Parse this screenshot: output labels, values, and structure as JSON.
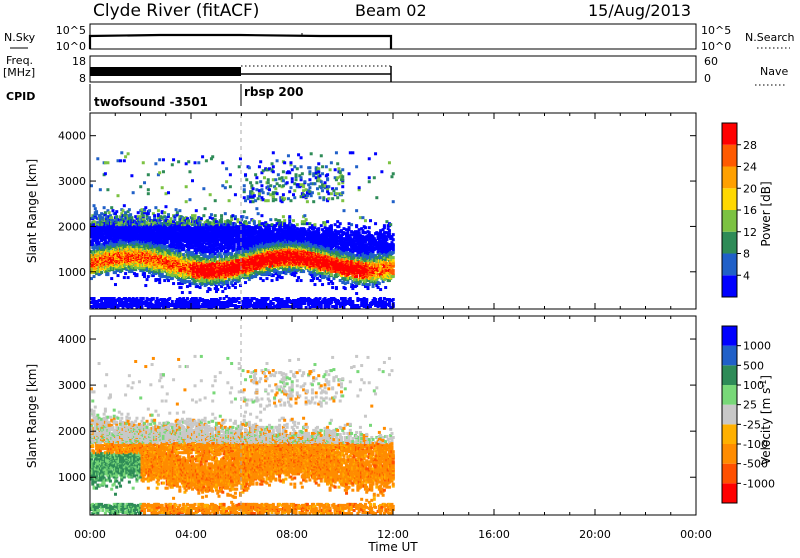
{
  "header": {
    "station": "Clyde River (fitACF)",
    "beam": "Beam 02",
    "date": "15/Aug/2013"
  },
  "strips": {
    "nsky": {
      "left_label": "N.Sky",
      "left_ticks": [
        "10^5",
        "10^0"
      ],
      "right_ticks": [
        "10^5",
        "10^0"
      ],
      "right_label": "N.Search"
    },
    "freq": {
      "left_label_1": "Freq.",
      "left_label_2": "[MHz]",
      "left_ticks": [
        "18",
        "8"
      ],
      "right_ticks": [
        "60",
        "0"
      ],
      "right_label": "Nave"
    },
    "cpid": {
      "label": "CPID",
      "programs": [
        "twofsound -3501",
        "rbsp 200"
      ]
    }
  },
  "colors": {
    "power_scale": [
      "#0000ff",
      "#2060c8",
      "#2e8b57",
      "#7cc242",
      "#ffd800",
      "#ffa000",
      "#ff5a00",
      "#ff0000"
    ],
    "velocity_scale": [
      "#ff0000",
      "#ff5000",
      "#ff8c00",
      "#ffb000",
      "#c8c8c8",
      "#78d878",
      "#2e8b57",
      "#2060c8",
      "#0000ff"
    ]
  },
  "chart_data": [
    {
      "type": "heatmap",
      "panel": "power",
      "ylabel": "Slant Range [km]",
      "xlabel": "Time UT",
      "x_ticks": [
        "00:00",
        "04:00",
        "08:00",
        "12:00",
        "16:00",
        "20:00",
        "00:00"
      ],
      "x_range_hours": [
        0,
        24
      ],
      "y_ticks": [
        1000,
        2000,
        3000,
        4000
      ],
      "y_range_km": [
        180,
        4500
      ],
      "colorbar_label": "Power [dB]",
      "colorbar_ticks": [
        4,
        8,
        12,
        16,
        20,
        24,
        28
      ],
      "colorbar_range": [
        0,
        32
      ],
      "data_extent_hours": [
        0,
        12
      ]
    },
    {
      "type": "heatmap",
      "panel": "velocity",
      "ylabel": "Slant Range [km]",
      "xlabel": "Time UT",
      "x_ticks": [
        "00:00",
        "04:00",
        "08:00",
        "12:00",
        "16:00",
        "20:00",
        "00:00"
      ],
      "x_range_hours": [
        0,
        24
      ],
      "y_ticks": [
        1000,
        2000,
        3000,
        4000
      ],
      "y_range_km": [
        180,
        4500
      ],
      "colorbar_label": "Velocity [m s^-1]",
      "colorbar_ticks": [
        "1000",
        "500",
        "100",
        "25",
        "-25",
        "-100",
        "-500",
        "-1000"
      ],
      "data_extent_hours": [
        0,
        12
      ]
    }
  ]
}
